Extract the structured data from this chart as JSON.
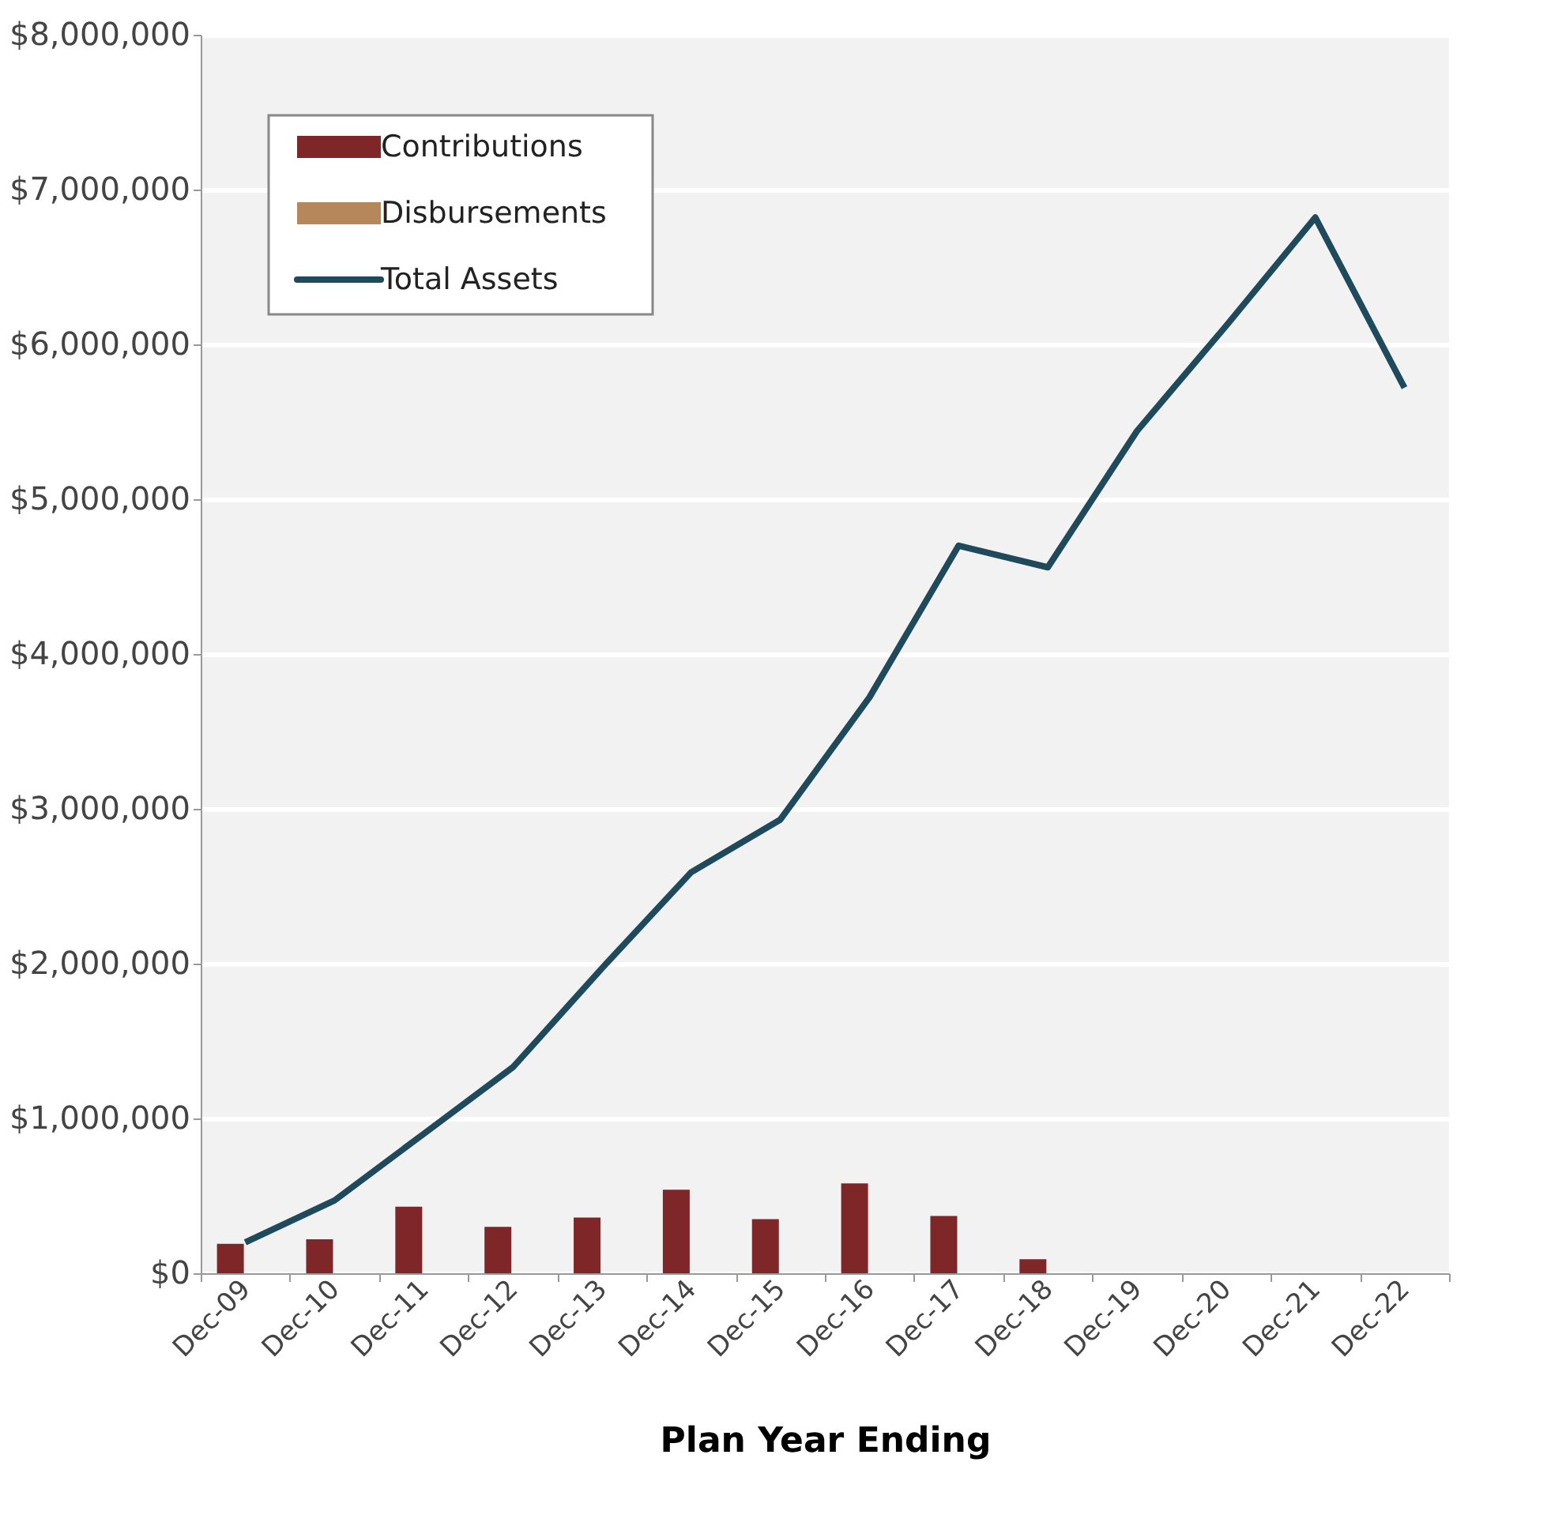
{
  "chart_data": {
    "type": "bar",
    "xlabel": "Plan Year Ending",
    "categories": [
      "Dec-09",
      "Dec-10",
      "Dec-11",
      "Dec-12",
      "Dec-13",
      "Dec-14",
      "Dec-15",
      "Dec-16",
      "Dec-17",
      "Dec-18",
      "Dec-19",
      "Dec-20",
      "Dec-21",
      "Dec-22"
    ],
    "series": [
      {
        "name": "Contributions",
        "color": "#7f2628",
        "values": [
          190000,
          220000,
          430000,
          300000,
          360000,
          540000,
          350000,
          580000,
          370000,
          90000,
          null,
          null,
          null,
          null
        ]
      },
      {
        "name": "Disbursements",
        "color": "#b5875a",
        "values": [
          0,
          0,
          0,
          0,
          0,
          0,
          0,
          0,
          0,
          0,
          0,
          0,
          0,
          0
        ]
      },
      {
        "name": "Total Assets",
        "type": "line",
        "color": "#1f4a5c",
        "values": [
          200000,
          470000,
          900000,
          1330000,
          1970000,
          2590000,
          2930000,
          3720000,
          4700000,
          4560000,
          5440000,
          6120000,
          6820000,
          5720000
        ]
      }
    ],
    "ylim": [
      0,
      8000000
    ],
    "yticks": [
      {
        "value": 0,
        "label": "$0"
      },
      {
        "value": 1000000,
        "label": "$1,000,000"
      },
      {
        "value": 2000000,
        "label": "$2,000,000"
      },
      {
        "value": 3000000,
        "label": "$3,000,000"
      },
      {
        "value": 4000000,
        "label": "$4,000,000"
      },
      {
        "value": 5000000,
        "label": "$5,000,000"
      },
      {
        "value": 6000000,
        "label": "$6,000,000"
      },
      {
        "value": 7000000,
        "label": "$7,000,000"
      },
      {
        "value": 8000000,
        "label": "$8,000,000"
      }
    ],
    "grid": "y",
    "legend": "top left",
    "line_style": "solid",
    "marker": "none"
  }
}
